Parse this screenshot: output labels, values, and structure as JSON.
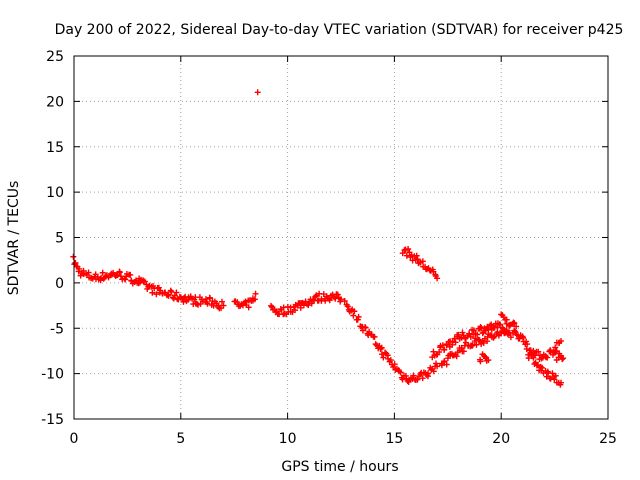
{
  "chart_data": {
    "type": "scatter",
    "title": "Day 200 of 2022, Sidereal Day-to-day VTEC variation (SDTVAR) for receiver p425",
    "xlabel": "GPS time / hours",
    "ylabel": "SDTVAR / TECUs",
    "xlim": [
      0,
      25
    ],
    "ylim": [
      -15,
      25
    ],
    "xticks": [
      0,
      5,
      10,
      15,
      20,
      25
    ],
    "yticks": [
      -15,
      -10,
      -5,
      0,
      5,
      10,
      15,
      20,
      25
    ],
    "grid": true,
    "marker": "+",
    "color": "#ff0000",
    "tracks": [
      [
        [
          0,
          2.5
        ],
        [
          0.1,
          1.8
        ],
        [
          0.3,
          1.2
        ],
        [
          0.6,
          0.8
        ],
        [
          1.0,
          0.6
        ],
        [
          1.5,
          0.8
        ],
        [
          2.0,
          1.0
        ],
        [
          2.5,
          0.6
        ],
        [
          3.0,
          0.2
        ],
        [
          3.5,
          -0.5
        ],
        [
          4.0,
          -1.0
        ],
        [
          4.5,
          -1.3
        ],
        [
          5.0,
          -1.6
        ],
        [
          5.5,
          -1.9
        ],
        [
          6.0,
          -2.0
        ],
        [
          6.5,
          -2.1
        ],
        [
          7.0,
          -2.5
        ]
      ],
      [
        [
          7.5,
          -2.3
        ],
        [
          7.9,
          -2.6
        ],
        [
          8.3,
          -2.2
        ],
        [
          8.5,
          -1.2
        ]
      ],
      [
        [
          8.6,
          21.0
        ]
      ],
      [
        [
          9.2,
          -2.8
        ],
        [
          9.6,
          -3.2
        ],
        [
          10.0,
          -3.0
        ],
        [
          10.5,
          -2.5
        ],
        [
          11.0,
          -2.0
        ],
        [
          11.5,
          -1.6
        ],
        [
          12.0,
          -1.5
        ],
        [
          12.5,
          -1.8
        ]
      ],
      [
        [
          12.7,
          -2.2
        ],
        [
          13.1,
          -3.2
        ],
        [
          13.5,
          -4.8
        ],
        [
          14.0,
          -6.2
        ],
        [
          14.5,
          -7.8
        ],
        [
          15.0,
          -9.2
        ],
        [
          15.4,
          -10.3
        ],
        [
          15.8,
          -10.6
        ],
        [
          16.2,
          -10.3
        ],
        [
          16.6,
          -9.8
        ],
        [
          17.0,
          -9.2
        ]
      ],
      [
        [
          15.4,
          3.7
        ],
        [
          15.8,
          3.0
        ],
        [
          16.2,
          2.3
        ],
        [
          16.6,
          1.5
        ],
        [
          17.0,
          0.5
        ]
      ],
      [
        [
          16.8,
          -8.0
        ],
        [
          17.3,
          -7.0
        ],
        [
          17.8,
          -6.3
        ],
        [
          18.3,
          -5.8
        ],
        [
          18.8,
          -5.3
        ],
        [
          19.3,
          -5.0
        ],
        [
          19.8,
          -4.8
        ],
        [
          20.3,
          -5.5
        ]
      ],
      [
        [
          17.2,
          -9.0
        ],
        [
          17.7,
          -8.0
        ],
        [
          18.2,
          -7.2
        ],
        [
          18.7,
          -6.6
        ],
        [
          19.2,
          -6.2
        ],
        [
          19.7,
          -5.8
        ],
        [
          20.2,
          -5.5
        ],
        [
          20.7,
          -5.6
        ],
        [
          21.0,
          -5.9
        ]
      ],
      [
        [
          19.0,
          -8.2
        ],
        [
          19.4,
          -8.5
        ]
      ],
      [
        [
          20.0,
          -3.5
        ],
        [
          20.4,
          -4.5
        ],
        [
          20.7,
          -4.8
        ]
      ],
      [
        [
          21.0,
          -6.0
        ],
        [
          21.3,
          -7.0
        ],
        [
          21.6,
          -8.0
        ],
        [
          22.0,
          -8.0
        ],
        [
          22.4,
          -7.6
        ],
        [
          22.8,
          -6.4
        ]
      ],
      [
        [
          21.2,
          -7.5
        ],
        [
          21.6,
          -9.0
        ],
        [
          22.0,
          -9.8
        ],
        [
          22.4,
          -10.4
        ],
        [
          22.8,
          -11.0
        ]
      ],
      [
        [
          22.5,
          -8.0
        ],
        [
          22.9,
          -8.3
        ]
      ]
    ]
  }
}
